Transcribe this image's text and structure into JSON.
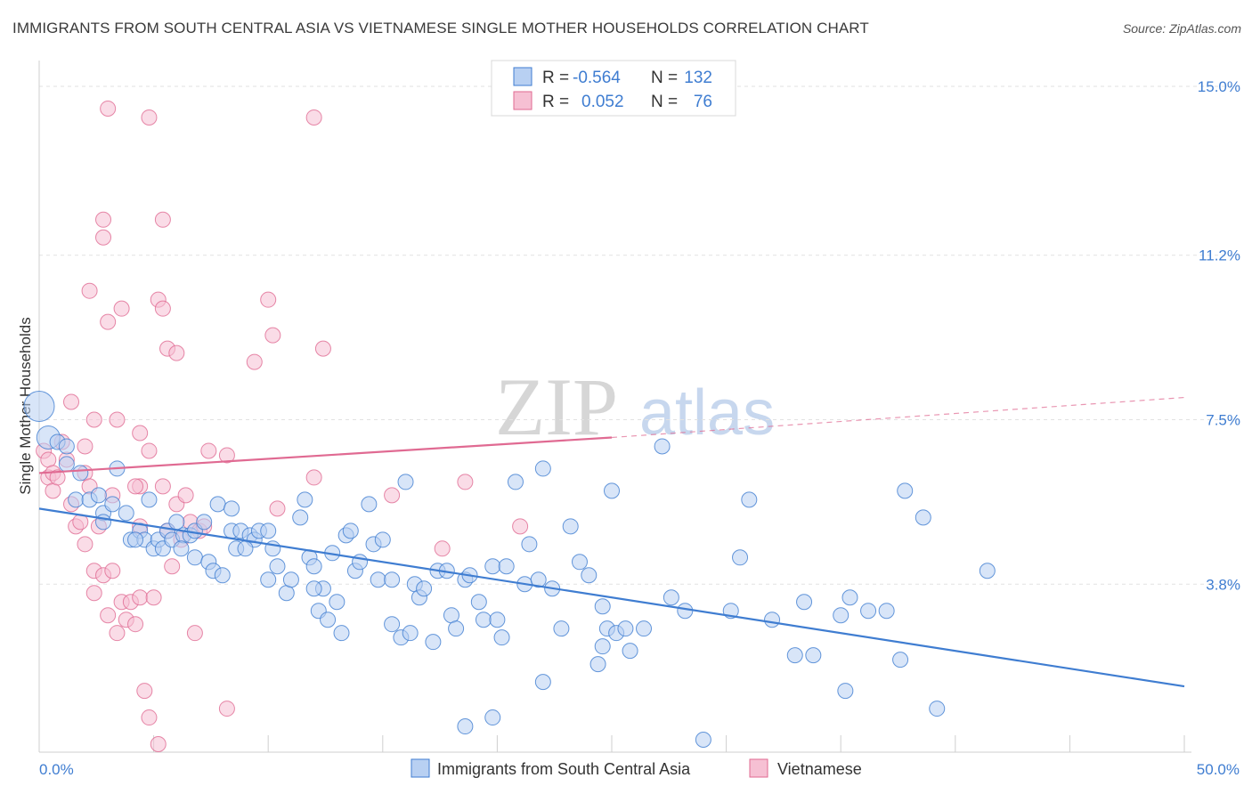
{
  "header": {
    "title": "IMMIGRANTS FROM SOUTH CENTRAL ASIA VS VIETNAMESE SINGLE MOTHER HOUSEHOLDS CORRELATION CHART",
    "source": "Source: ZipAtlas.com"
  },
  "watermark": {
    "zip": "ZIP",
    "atlas": "atlas"
  },
  "colors": {
    "blue": "#3f7dd1",
    "blue_fill": "#b8d0f2",
    "pink": "#e06a92",
    "pink_fill": "#f6c0d3",
    "grid": "#dddddd"
  },
  "chart_data": {
    "type": "scatter",
    "ylabel": "Single Mother Households",
    "xlim": [
      0,
      50
    ],
    "ylim": [
      0,
      15.5
    ],
    "x_tick_labels": [
      "0.0%",
      "50.0%"
    ],
    "y_ticks": [
      {
        "value": 3.8,
        "label": "3.8%"
      },
      {
        "value": 7.5,
        "label": "7.5%"
      },
      {
        "value": 11.2,
        "label": "11.2%"
      },
      {
        "value": 15.0,
        "label": "15.0%"
      }
    ],
    "legend": [
      {
        "r_label": "R =",
        "r_value": "-0.564",
        "n_label": "N =",
        "n_value": "132"
      },
      {
        "r_label": "R =",
        "r_value": "0.052",
        "n_label": "N =",
        "n_value": "76"
      }
    ],
    "series": [
      {
        "name": "Immigrants from South Central Asia",
        "color": "#3f7dd1",
        "trend": {
          "x": [
            0,
            50
          ],
          "y": [
            5.5,
            1.5
          ]
        },
        "points": [
          [
            0,
            7.8
          ],
          [
            0.4,
            7.1
          ],
          [
            0.8,
            7.0
          ],
          [
            1.2,
            6.5
          ],
          [
            1.2,
            6.9
          ],
          [
            1.8,
            6.3
          ],
          [
            1.6,
            5.7
          ],
          [
            2.2,
            5.7
          ],
          [
            2.6,
            5.8
          ],
          [
            2.8,
            5.4
          ],
          [
            3.2,
            5.6
          ],
          [
            2.8,
            5.2
          ],
          [
            3.4,
            6.4
          ],
          [
            3.8,
            5.4
          ],
          [
            4.0,
            4.8
          ],
          [
            4.4,
            5.0
          ],
          [
            4.6,
            4.8
          ],
          [
            4.8,
            5.7
          ],
          [
            5.0,
            4.6
          ],
          [
            5.2,
            4.8
          ],
          [
            5.4,
            4.6
          ],
          [
            5.6,
            5.0
          ],
          [
            5.8,
            4.8
          ],
          [
            6.0,
            5.2
          ],
          [
            6.3,
            4.9
          ],
          [
            6.6,
            4.9
          ],
          [
            6.8,
            5.0
          ],
          [
            7.2,
            5.2
          ],
          [
            6.8,
            4.4
          ],
          [
            7.4,
            4.3
          ],
          [
            7.6,
            4.1
          ],
          [
            8.0,
            4.0
          ],
          [
            7.8,
            5.6
          ],
          [
            8.4,
            5.5
          ],
          [
            8.6,
            4.6
          ],
          [
            8.4,
            5.0
          ],
          [
            8.8,
            5.0
          ],
          [
            9.2,
            4.9
          ],
          [
            9.4,
            4.8
          ],
          [
            9.6,
            5.0
          ],
          [
            10.0,
            5.0
          ],
          [
            10.2,
            4.6
          ],
          [
            10.4,
            4.2
          ],
          [
            10.0,
            3.9
          ],
          [
            10.8,
            3.6
          ],
          [
            11.0,
            3.9
          ],
          [
            11.4,
            5.3
          ],
          [
            11.6,
            5.7
          ],
          [
            11.8,
            4.4
          ],
          [
            12.0,
            4.2
          ],
          [
            12.2,
            3.2
          ],
          [
            12.4,
            3.7
          ],
          [
            12.6,
            3.0
          ],
          [
            12.8,
            4.5
          ],
          [
            13.0,
            3.4
          ],
          [
            13.2,
            2.7
          ],
          [
            13.4,
            4.9
          ],
          [
            13.8,
            4.1
          ],
          [
            14.0,
            4.3
          ],
          [
            14.4,
            5.6
          ],
          [
            14.6,
            4.7
          ],
          [
            14.8,
            3.9
          ],
          [
            15.0,
            4.8
          ],
          [
            15.4,
            3.9
          ],
          [
            16.0,
            6.1
          ],
          [
            15.4,
            2.9
          ],
          [
            15.8,
            2.6
          ],
          [
            16.2,
            2.7
          ],
          [
            16.4,
            3.8
          ],
          [
            16.6,
            3.5
          ],
          [
            16.8,
            3.7
          ],
          [
            17.2,
            2.5
          ],
          [
            17.4,
            4.1
          ],
          [
            17.8,
            4.1
          ],
          [
            18.0,
            3.1
          ],
          [
            18.2,
            2.8
          ],
          [
            18.6,
            3.9
          ],
          [
            18.8,
            4.0
          ],
          [
            19.2,
            3.4
          ],
          [
            19.4,
            3.0
          ],
          [
            19.8,
            4.2
          ],
          [
            20.0,
            3.0
          ],
          [
            20.2,
            2.6
          ],
          [
            20.4,
            4.2
          ],
          [
            20.8,
            6.1
          ],
          [
            21.2,
            3.8
          ],
          [
            21.4,
            4.7
          ],
          [
            21.8,
            3.9
          ],
          [
            22.0,
            6.4
          ],
          [
            22.4,
            3.7
          ],
          [
            22.8,
            2.8
          ],
          [
            23.2,
            5.1
          ],
          [
            23.6,
            4.3
          ],
          [
            24.0,
            4.0
          ],
          [
            24.4,
            2.0
          ],
          [
            24.6,
            3.3
          ],
          [
            24.6,
            2.4
          ],
          [
            24.8,
            2.8
          ],
          [
            25.0,
            5.9
          ],
          [
            25.2,
            2.7
          ],
          [
            25.6,
            2.8
          ],
          [
            25.8,
            2.3
          ],
          [
            26.4,
            2.8
          ],
          [
            27.2,
            6.9
          ],
          [
            27.6,
            3.5
          ],
          [
            28.2,
            3.2
          ],
          [
            29.0,
            0.3
          ],
          [
            30.2,
            3.2
          ],
          [
            30.6,
            4.4
          ],
          [
            31.0,
            5.7
          ],
          [
            32.0,
            3.0
          ],
          [
            33.0,
            2.2
          ],
          [
            33.4,
            3.4
          ],
          [
            33.8,
            2.2
          ],
          [
            35.0,
            3.1
          ],
          [
            35.2,
            1.4
          ],
          [
            35.4,
            3.5
          ],
          [
            36.2,
            3.2
          ],
          [
            37.0,
            3.2
          ],
          [
            37.6,
            2.1
          ],
          [
            37.8,
            5.9
          ],
          [
            38.6,
            5.3
          ],
          [
            39.2,
            1.0
          ],
          [
            41.4,
            4.1
          ],
          [
            18.6,
            0.6
          ],
          [
            19.8,
            0.8
          ],
          [
            22.0,
            1.6
          ],
          [
            4.2,
            4.8
          ],
          [
            6.2,
            4.6
          ],
          [
            9.0,
            4.6
          ],
          [
            12.0,
            3.7
          ],
          [
            13.6,
            5.0
          ]
        ]
      },
      {
        "name": "Vietnamese",
        "color": "#e06a92",
        "trend": {
          "x": [
            0,
            25
          ],
          "y": [
            6.3,
            7.1
          ]
        },
        "trend_dashed": {
          "x": [
            25,
            50
          ],
          "y": [
            7.1,
            8.0
          ]
        },
        "points": [
          [
            0.2,
            6.8
          ],
          [
            0.4,
            6.6
          ],
          [
            0.4,
            6.2
          ],
          [
            0.6,
            6.3
          ],
          [
            0.6,
            5.9
          ],
          [
            0.8,
            6.2
          ],
          [
            1.0,
            7.0
          ],
          [
            1.2,
            6.6
          ],
          [
            1.4,
            7.9
          ],
          [
            1.4,
            5.6
          ],
          [
            1.6,
            5.1
          ],
          [
            1.8,
            5.2
          ],
          [
            2.0,
            4.7
          ],
          [
            2.0,
            6.3
          ],
          [
            2.2,
            6.0
          ],
          [
            2.4,
            4.1
          ],
          [
            2.4,
            3.6
          ],
          [
            2.6,
            5.1
          ],
          [
            2.8,
            4.0
          ],
          [
            3.0,
            3.1
          ],
          [
            3.2,
            4.1
          ],
          [
            3.2,
            5.8
          ],
          [
            3.4,
            2.7
          ],
          [
            3.6,
            3.4
          ],
          [
            3.8,
            3.0
          ],
          [
            4.0,
            3.4
          ],
          [
            4.2,
            2.9
          ],
          [
            4.4,
            6.0
          ],
          [
            4.4,
            3.5
          ],
          [
            4.6,
            1.4
          ],
          [
            4.8,
            0.8
          ],
          [
            5.0,
            3.5
          ],
          [
            5.2,
            0.2
          ],
          [
            5.4,
            6.0
          ],
          [
            5.6,
            5.0
          ],
          [
            5.8,
            4.2
          ],
          [
            6.0,
            5.6
          ],
          [
            6.2,
            4.8
          ],
          [
            6.4,
            5.8
          ],
          [
            6.6,
            5.2
          ],
          [
            6.8,
            2.7
          ],
          [
            7.0,
            5.0
          ],
          [
            7.2,
            5.1
          ],
          [
            7.4,
            6.8
          ],
          [
            8.2,
            1.0
          ],
          [
            8.2,
            6.7
          ],
          [
            10.4,
            5.5
          ],
          [
            12.0,
            6.2
          ],
          [
            15.4,
            5.8
          ],
          [
            17.6,
            4.6
          ],
          [
            18.6,
            6.1
          ],
          [
            21.0,
            5.1
          ],
          [
            2.0,
            6.9
          ],
          [
            2.2,
            10.4
          ],
          [
            2.4,
            7.5
          ],
          [
            3.0,
            9.7
          ],
          [
            3.4,
            7.5
          ],
          [
            3.6,
            10.0
          ],
          [
            4.2,
            6.0
          ],
          [
            4.4,
            7.2
          ],
          [
            4.8,
            6.8
          ],
          [
            5.2,
            10.2
          ],
          [
            5.4,
            10.0
          ],
          [
            5.6,
            9.1
          ],
          [
            6.0,
            9.0
          ],
          [
            9.4,
            8.8
          ],
          [
            10.0,
            10.2
          ],
          [
            10.2,
            9.4
          ],
          [
            12.4,
            9.1
          ],
          [
            2.8,
            12.0
          ],
          [
            2.8,
            11.6
          ],
          [
            3.0,
            14.5
          ],
          [
            4.8,
            14.3
          ],
          [
            5.4,
            12.0
          ],
          [
            12.0,
            14.3
          ],
          [
            4.4,
            5.1
          ]
        ]
      }
    ]
  },
  "bottom_legend": [
    {
      "label": "Immigrants from South Central Asia"
    },
    {
      "label": "Vietnamese"
    }
  ]
}
